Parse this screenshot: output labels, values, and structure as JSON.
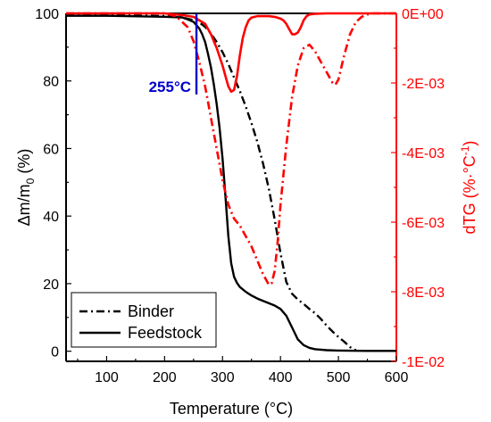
{
  "chart_data": {
    "type": "line",
    "xlabel": "Temperature (°C)",
    "ylabel_left": {
      "prefix": "Δm/m",
      "subscript": "0",
      "suffix": " (%)"
    },
    "ylabel_right": {
      "prefix": "dTG (%·°C",
      "superscript": "-1",
      "suffix": ")"
    },
    "xlim": [
      30,
      600
    ],
    "ylim_left": [
      -3,
      100
    ],
    "ylim_right": [
      -0.01,
      0
    ],
    "x_ticks": [
      100,
      200,
      300,
      400,
      500,
      600
    ],
    "x_tick_labels": [
      "100",
      "200",
      "300",
      "400",
      "500",
      "600"
    ],
    "y_left_ticks": [
      0,
      20,
      40,
      60,
      80,
      100
    ],
    "y_left_tick_labels": [
      "0",
      "20",
      "40",
      "60",
      "80",
      "100"
    ],
    "y_right_ticks": [
      0,
      -0.002,
      -0.004,
      -0.006,
      -0.008,
      -0.01
    ],
    "y_right_tick_labels": [
      "0E+00",
      "-2E-03",
      "-4E-03",
      "-6E-03",
      "-8E-03",
      "-1E-02"
    ],
    "colors": {
      "left_axis": "#000000",
      "right_axis": "#ff0000",
      "annotation": "#0000cc"
    },
    "annotation": {
      "label": "255°C",
      "x": 255,
      "y_from": 76,
      "y_to": 100
    },
    "legend": {
      "placement": "bottom-left",
      "entries": [
        {
          "label": "Binder",
          "style": "dash-dot",
          "color": "#000000"
        },
        {
          "label": "Feedstock",
          "style": "solid",
          "color": "#000000"
        }
      ]
    },
    "series": [
      {
        "name": "Binder",
        "axis": "left",
        "kind": "TG",
        "color": "#000000",
        "style": "dash-dot",
        "x": [
          30,
          100,
          200,
          230,
          250,
          260,
          270,
          280,
          290,
          300,
          310,
          320,
          330,
          340,
          350,
          360,
          370,
          380,
          390,
          400,
          410,
          420,
          430,
          440,
          450,
          460,
          470,
          480,
          490,
          500,
          510,
          520,
          530
        ],
        "y": [
          99.5,
          99.5,
          99.2,
          98.8,
          98,
          97.3,
          96,
          94,
          91.5,
          88.5,
          85,
          81,
          77,
          72.5,
          67.5,
          62,
          55.5,
          48,
          39,
          29,
          20.5,
          17,
          15.3,
          14,
          12.5,
          11.2,
          9.5,
          7.5,
          5.8,
          4.2,
          2.8,
          1.2,
          0.3
        ]
      },
      {
        "name": "Feedstock",
        "axis": "left",
        "kind": "TG",
        "color": "#000000",
        "style": "solid",
        "x": [
          30,
          100,
          200,
          230,
          240,
          250,
          255,
          260,
          265,
          270,
          275,
          280,
          285,
          290,
          295,
          300,
          305,
          310,
          315,
          320,
          325,
          330,
          340,
          350,
          360,
          370,
          380,
          390,
          400,
          410,
          420,
          430,
          440,
          450,
          460,
          480,
          500,
          550,
          600
        ],
        "y": [
          99.3,
          99.3,
          99,
          98.8,
          98.2,
          97.5,
          96.5,
          95.5,
          93.8,
          91.5,
          88,
          84,
          79,
          73,
          66,
          57,
          46,
          34,
          26,
          22,
          20.2,
          19,
          17.6,
          16.5,
          15.6,
          14.9,
          14.2,
          13.5,
          12.5,
          10.5,
          7,
          3.5,
          1.8,
          1,
          0.6,
          0.3,
          0.2,
          0.1,
          0.1
        ]
      },
      {
        "name": "Binder",
        "axis": "right",
        "kind": "dTG",
        "color": "#ff0000",
        "style": "dash-dot",
        "x": [
          30,
          200,
          220,
          240,
          250,
          260,
          270,
          280,
          290,
          300,
          310,
          320,
          330,
          340,
          350,
          360,
          370,
          380,
          385,
          390,
          395,
          400,
          410,
          420,
          430,
          440,
          450,
          460,
          470,
          480,
          490,
          495,
          500,
          510,
          520,
          530,
          540,
          550,
          560,
          600
        ],
        "y": [
          0,
          0,
          -8e-05,
          -0.0004,
          -0.0008,
          -0.0014,
          -0.0021,
          -0.003,
          -0.0039,
          -0.0048,
          -0.0055,
          -0.0059,
          -0.0061,
          -0.0064,
          -0.0067,
          -0.0071,
          -0.0075,
          -0.0078,
          -0.00775,
          -0.0074,
          -0.0066,
          -0.0055,
          -0.0038,
          -0.0024,
          -0.0015,
          -0.001,
          -0.0009,
          -0.0011,
          -0.0014,
          -0.0017,
          -0.002,
          -0.00205,
          -0.0019,
          -0.0012,
          -0.0006,
          -0.00025,
          -0.0001,
          -3e-05,
          0,
          0
        ]
      },
      {
        "name": "Feedstock",
        "axis": "right",
        "kind": "dTG",
        "color": "#ff0000",
        "style": "solid",
        "x": [
          30,
          200,
          230,
          250,
          270,
          280,
          290,
          300,
          305,
          310,
          315,
          320,
          325,
          330,
          335,
          340,
          345,
          350,
          360,
          380,
          390,
          400,
          405,
          410,
          415,
          420,
          425,
          430,
          435,
          440,
          445,
          450,
          460,
          480,
          600
        ],
        "y": [
          0,
          0,
          -5e-05,
          -0.0001,
          -0.0003,
          -0.0006,
          -0.001,
          -0.0015,
          -0.0018,
          -0.0021,
          -0.00225,
          -0.0022,
          -0.0018,
          -0.0012,
          -0.0007,
          -0.0004,
          -0.0002,
          -0.00012,
          -8e-05,
          -8e-05,
          -0.0001,
          -0.00015,
          -0.0002,
          -0.0003,
          -0.00045,
          -0.0006,
          -0.0006,
          -0.00055,
          -0.0004,
          -0.0002,
          -8e-05,
          -3e-05,
          -1e-05,
          0,
          0
        ]
      }
    ]
  }
}
